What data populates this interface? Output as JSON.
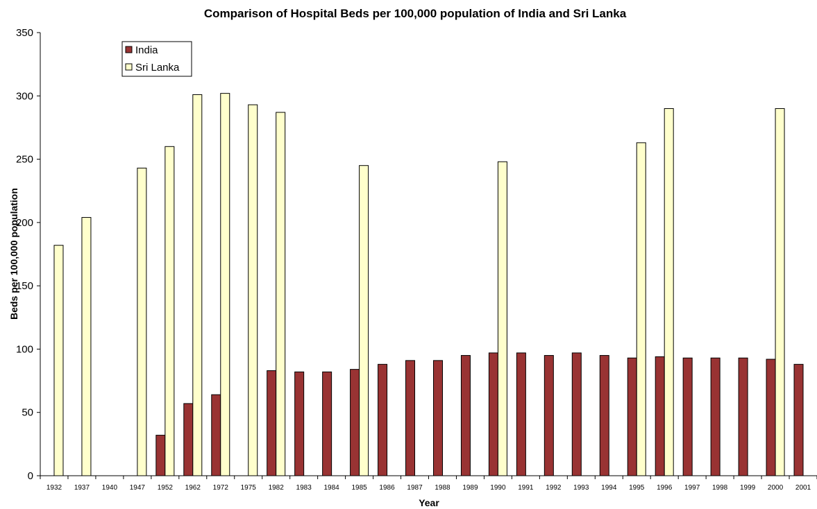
{
  "chart_data": {
    "type": "bar",
    "title": "Comparison of Hospital Beds per 100,000 population of India and Sri Lanka",
    "xlabel": "Year",
    "ylabel": "Beds per 100,000 population",
    "ylim": [
      0,
      350
    ],
    "yticks": [
      0,
      50,
      100,
      150,
      200,
      250,
      300,
      350
    ],
    "grid": false,
    "legend_position": "top-left",
    "categories": [
      "1932",
      "1937",
      "1940",
      "1947",
      "1952",
      "1962",
      "1972",
      "1975",
      "1982",
      "1983",
      "1984",
      "1985",
      "1986",
      "1987",
      "1988",
      "1989",
      "1990",
      "1991",
      "1992",
      "1993",
      "1994",
      "1995",
      "1996",
      "1997",
      "1998",
      "1999",
      "2000",
      "2001"
    ],
    "series": [
      {
        "name": "India",
        "color": "#993333",
        "values": [
          null,
          null,
          null,
          null,
          32,
          57,
          64,
          null,
          83,
          82,
          82,
          84,
          88,
          91,
          91,
          95,
          97,
          97,
          95,
          97,
          95,
          93,
          94,
          93,
          93,
          93,
          92,
          88
        ]
      },
      {
        "name": "Sri Lanka",
        "color": "#FFFFCC",
        "values": [
          182,
          204,
          null,
          243,
          260,
          301,
          302,
          293,
          287,
          null,
          null,
          245,
          null,
          null,
          null,
          null,
          248,
          null,
          null,
          null,
          null,
          263,
          290,
          null,
          null,
          null,
          290,
          null
        ]
      }
    ]
  }
}
